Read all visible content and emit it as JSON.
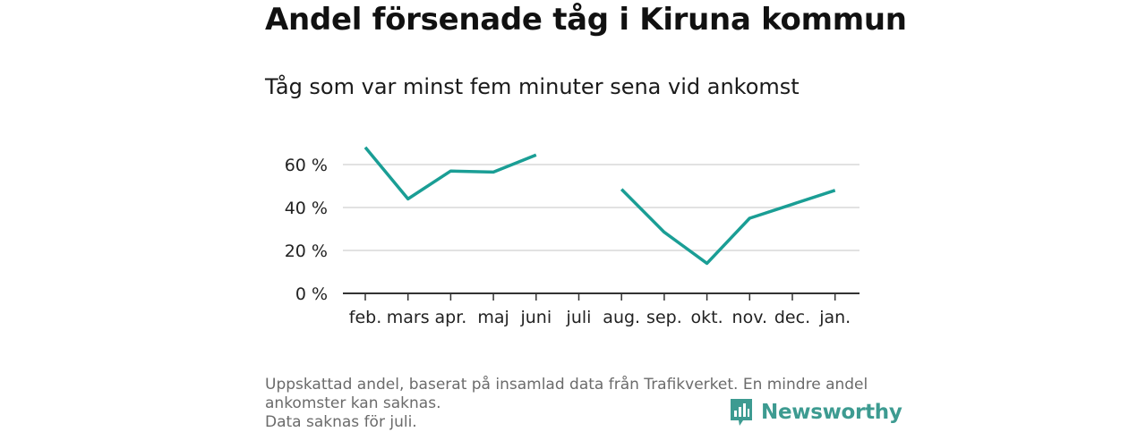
{
  "title": "Andel försenade tåg i Kiruna kommun",
  "subtitle": "Tåg som var minst fem minuter sena vid ankomst",
  "footnote": {
    "line1": "Uppskattad andel, baserat på insamlad data från Trafikverket. En mindre andel ankomster kan saknas.",
    "line2": "Data saknas för juli."
  },
  "brand": {
    "name": "Newsworthy",
    "icon": "bar-chart-speech-icon"
  },
  "colors": {
    "line": "#1a9e95",
    "grid": "#d9d9d9",
    "axis": "#333333",
    "brand": "#3d9b91"
  },
  "chart_data": {
    "type": "line",
    "categories": [
      "feb.",
      "mars",
      "apr.",
      "maj",
      "juni",
      "juli",
      "aug.",
      "sep.",
      "okt.",
      "nov.",
      "dec.",
      "jan."
    ],
    "series": [
      {
        "values": [
          68,
          44,
          57,
          56.5,
          64.5,
          null,
          48.5,
          28.5,
          14,
          35,
          41.5,
          48
        ]
      }
    ],
    "y_ticks": [
      0,
      20,
      40,
      60
    ],
    "y_tick_labels": [
      "0 %",
      "20 %",
      "40 %",
      "60 %"
    ],
    "ylim": [
      0,
      70
    ],
    "grid": true,
    "xlabel": "",
    "ylabel": ""
  }
}
